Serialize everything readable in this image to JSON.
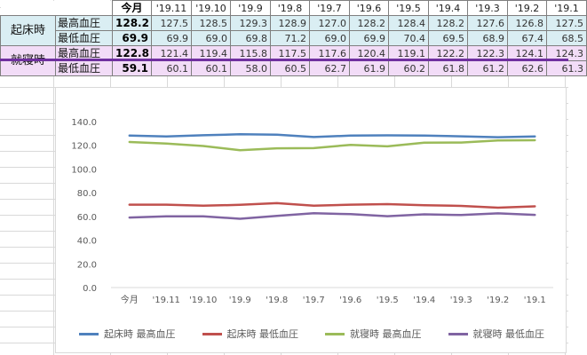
{
  "table": {
    "columns": [
      "今月",
      "'19.11",
      "'19.10",
      "'19.9",
      "'19.8",
      "'19.7",
      "'19.6",
      "'19.5",
      "'19.4",
      "'19.3",
      "'19.2",
      "'19.1"
    ],
    "groups": [
      {
        "label": "起床時",
        "rows": [
          {
            "label": "最高血圧",
            "values": [
              "128.2",
              "127.5",
              "128.5",
              "129.3",
              "128.9",
              "127.0",
              "128.2",
              "128.4",
              "128.2",
              "127.6",
              "126.8",
              "127.5"
            ]
          },
          {
            "label": "最低血圧",
            "values": [
              "69.9",
              "69.9",
              "69.0",
              "69.8",
              "71.2",
              "69.0",
              "69.9",
              "70.4",
              "69.5",
              "68.9",
              "67.4",
              "68.5"
            ]
          }
        ]
      },
      {
        "label": "就寝時",
        "rows": [
          {
            "label": "最高血圧",
            "values": [
              "122.8",
              "121.4",
              "119.4",
              "115.8",
              "117.5",
              "117.6",
              "120.4",
              "119.1",
              "122.2",
              "122.3",
              "124.1",
              "124.3"
            ]
          },
          {
            "label": "最低血圧",
            "values": [
              "59.1",
              "60.1",
              "60.1",
              "58.0",
              "60.5",
              "62.7",
              "61.9",
              "60.2",
              "61.8",
              "61.2",
              "62.6",
              "61.3"
            ]
          }
        ]
      }
    ]
  },
  "chart_data": {
    "type": "line",
    "categories": [
      "今月",
      "'19.11",
      "'19.10",
      "'19.9",
      "'19.8",
      "'19.7",
      "'19.6",
      "'19.5",
      "'19.4",
      "'19.3",
      "'19.2",
      "'19.1"
    ],
    "series": [
      {
        "name": "起床時 最高血圧",
        "color": "#4f81bd",
        "values": [
          128.2,
          127.5,
          128.5,
          129.3,
          128.9,
          127.0,
          128.2,
          128.4,
          128.2,
          127.6,
          126.8,
          127.5
        ]
      },
      {
        "name": "起床時 最低血圧",
        "color": "#c0504d",
        "values": [
          69.9,
          69.9,
          69.0,
          69.8,
          71.2,
          69.0,
          69.9,
          70.4,
          69.5,
          68.9,
          67.4,
          68.5
        ]
      },
      {
        "name": "就寝時 最高血圧",
        "color": "#9bbb59",
        "values": [
          122.8,
          121.4,
          119.4,
          115.8,
          117.5,
          117.6,
          120.4,
          119.1,
          122.2,
          122.3,
          124.1,
          124.3
        ]
      },
      {
        "name": "就寝時 最低血圧",
        "color": "#8064a2",
        "values": [
          59.1,
          60.1,
          60.1,
          58.0,
          60.5,
          62.7,
          61.9,
          60.2,
          61.8,
          61.2,
          62.6,
          61.3
        ]
      }
    ],
    "yticks": [
      "0.0",
      "20.0",
      "40.0",
      "60.0",
      "80.0",
      "100.0",
      "120.0",
      "140.0"
    ],
    "ylim": [
      0,
      140
    ],
    "grid": false,
    "legend": "bottom",
    "title": "",
    "xlabel": "",
    "ylabel": ""
  }
}
